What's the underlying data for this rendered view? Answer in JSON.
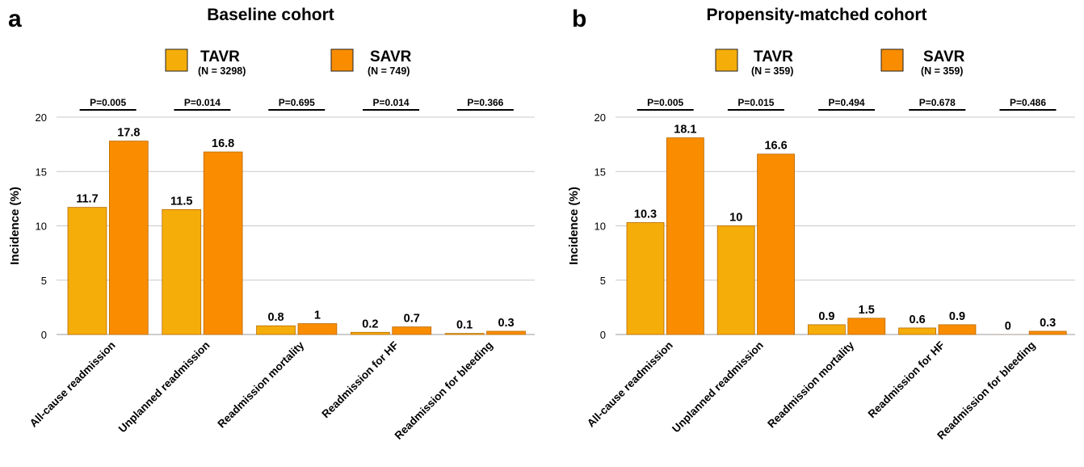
{
  "colors": {
    "tavr": "#f5ad0a",
    "savr": "#fa8c00",
    "grid": "#c8c8c8"
  },
  "chart_data": [
    {
      "type": "bar",
      "panel": "a",
      "title": "Baseline cohort",
      "ylabel": "Incidence (%)",
      "xlabel": "",
      "ylim": [
        0,
        20
      ],
      "yticks": [
        0,
        5,
        10,
        15,
        20
      ],
      "grid": true,
      "legend_position": "top",
      "categories": [
        "All-cause readmission",
        "Unplanned readmission",
        "Readmission mortality",
        "Readmission for HF",
        "Readmission for bleeding"
      ],
      "series": [
        {
          "name": "TAVR",
          "n_label": "(N = 3298)",
          "values": [
            11.7,
            11.5,
            0.8,
            0.2,
            0.1
          ]
        },
        {
          "name": "SAVR",
          "n_label": "(N = 749)",
          "values": [
            17.8,
            16.8,
            1,
            0.7,
            0.3
          ]
        }
      ],
      "data_labels": [
        [
          "11.7",
          "11.5",
          "0.8",
          "0.2",
          "0.1"
        ],
        [
          "17.8",
          "16.8",
          "1",
          "0.7",
          "0.3"
        ]
      ],
      "p_values": [
        "P=0.005",
        "P=0.014",
        "P=0.695",
        "P=0.014",
        "P=0.366"
      ]
    },
    {
      "type": "bar",
      "panel": "b",
      "title": "Propensity-matched cohort",
      "ylabel": "Incidence (%)",
      "xlabel": "",
      "ylim": [
        0,
        20
      ],
      "yticks": [
        0,
        5,
        10,
        15,
        20
      ],
      "grid": true,
      "legend_position": "top",
      "categories": [
        "All-cause readmission",
        "Unplanned readmission",
        "Readmission mortality",
        "Readmission for HF",
        "Readmission for bleeding"
      ],
      "series": [
        {
          "name": "TAVR",
          "n_label": "(N = 359)",
          "values": [
            10.3,
            10,
            0.9,
            0.6,
            0
          ]
        },
        {
          "name": "SAVR",
          "n_label": "(N = 359)",
          "values": [
            18.1,
            16.6,
            1.5,
            0.9,
            0.3
          ]
        }
      ],
      "data_labels": [
        [
          "10.3",
          "10",
          "0.9",
          "0.6",
          "0"
        ],
        [
          "18.1",
          "16.6",
          "1.5",
          "0.9",
          "0.3"
        ]
      ],
      "p_values": [
        "P=0.005",
        "P=0.015",
        "P=0.494",
        "P=0.678",
        "P=0.486"
      ]
    }
  ]
}
